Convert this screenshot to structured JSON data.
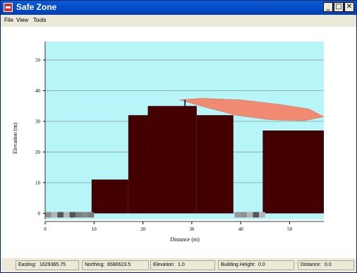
{
  "window": {
    "title": "Safe Zone",
    "minimize": "_",
    "maximize": "□",
    "close": "✕"
  },
  "menu": [
    "File",
    "View",
    "Tools"
  ],
  "chart_data": {
    "type": "area",
    "xlabel": "Distance (m)",
    "ylabel": "Elevation (m)",
    "xlim": [
      0,
      57
    ],
    "ylim": [
      -2,
      56
    ],
    "x_ticks": [
      0,
      10,
      20,
      30,
      40,
      50
    ],
    "y_ticks": [
      0,
      10,
      20,
      30,
      40,
      50
    ],
    "grid": true,
    "background_color": "#b6f5f8",
    "terrain_color": "#420000",
    "plume_color": "#f08a70",
    "buildings": [
      {
        "x0": 9.5,
        "x1": 17,
        "height": 11
      },
      {
        "x0": 17,
        "x1": 21,
        "height": 32
      },
      {
        "x0": 21,
        "x1": 31,
        "height": 35
      },
      {
        "x0": 31,
        "x1": 38.5,
        "height": 32
      },
      {
        "x0": 44.5,
        "x1": 57,
        "height": 27
      }
    ],
    "source": {
      "x": 28.6,
      "height": 37
    },
    "plume_outline": [
      [
        27.5,
        37
      ],
      [
        32,
        37.5
      ],
      [
        40,
        37
      ],
      [
        48,
        35.5
      ],
      [
        54,
        34
      ],
      [
        57,
        31.5
      ],
      [
        53,
        30.2
      ],
      [
        46,
        30.5
      ],
      [
        39,
        32
      ],
      [
        33,
        34.5
      ],
      [
        29,
        36.3
      ]
    ]
  },
  "status": [
    {
      "label": "Easting:",
      "value": "1629365.75"
    },
    {
      "label": "Northing:",
      "value": "6580623.5"
    },
    {
      "label": "Elevation:",
      "value": "1.0"
    },
    {
      "label": "Building Height:",
      "value": "0.0"
    },
    {
      "label": "Distance:",
      "value": "0.0"
    }
  ]
}
